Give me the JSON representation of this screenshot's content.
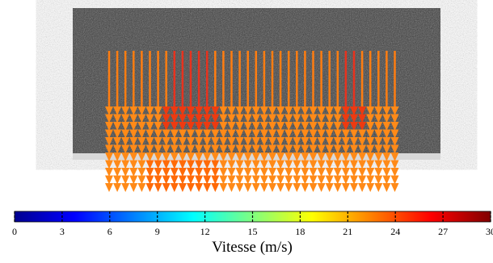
{
  "chart_data": {
    "type": "colorbar",
    "xlabel": "Vitesse (m/s)",
    "xlim": [
      0,
      30
    ],
    "xticks": [
      0,
      3,
      6,
      9,
      12,
      15,
      18,
      21,
      24,
      27,
      30
    ],
    "colormap": "jet"
  }
}
